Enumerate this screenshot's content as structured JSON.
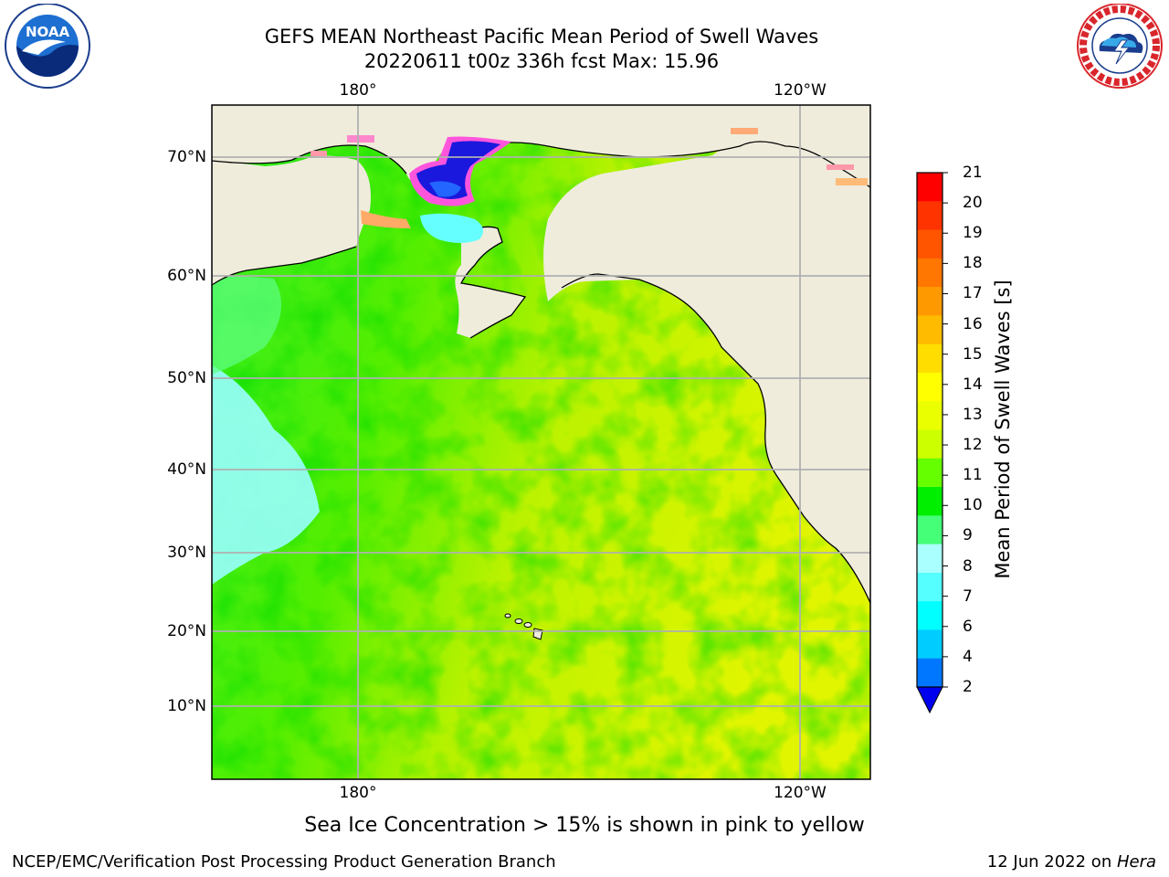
{
  "title": {
    "line1": "GEFS MEAN Northeast Pacific Mean Period of Swell Waves",
    "line2": "20220611 t00z 336h fcst   Max: 15.96"
  },
  "logos": {
    "left": {
      "name": "NOAA",
      "caption": "NATIONAL OCEANIC AND ATMOSPHERIC ADMINISTRATION · U.S. DEPARTMENT OF COMMERCE"
    },
    "right": {
      "name": "NATIONAL WEATHER SERVICE"
    }
  },
  "map": {
    "lat_labels": [
      "70°N",
      "60°N",
      "50°N",
      "40°N",
      "30°N",
      "20°N",
      "10°N"
    ],
    "lon_labels_top": [
      "180°",
      "120°W"
    ],
    "lon_labels_bottom": [
      "180°",
      "120°W"
    ],
    "colors": {
      "land": "#efecdc",
      "coast": "#000000",
      "grid": "#b0b0b0"
    }
  },
  "colorbar": {
    "title": "Mean Period of Swell Waves [s]",
    "tick_labels": [
      "21",
      "20",
      "19",
      "18",
      "17",
      "16",
      "15",
      "14",
      "13",
      "12",
      "11",
      "10",
      "9",
      "8",
      "7",
      "6",
      "4",
      "2"
    ],
    "colors_top_to_bottom": [
      "#ff0000",
      "#ff3300",
      "#ff5500",
      "#ff7700",
      "#ff9900",
      "#ffbb00",
      "#ffdd00",
      "#ffff00",
      "#eaff00",
      "#ccff00",
      "#66ff00",
      "#00ee00",
      "#44ff77",
      "#aaffff",
      "#55ffff",
      "#00ffff",
      "#00ccff",
      "#0077ff"
    ],
    "underflow_color": "#0000ee"
  },
  "note": "Sea Ice Concentration > 15% is shown in pink to yellow",
  "footer": {
    "left": "NCEP/EMC/Verification Post Processing Product Generation Branch",
    "right_prefix": "12 Jun 2022 on ",
    "right_host": "Hera"
  }
}
